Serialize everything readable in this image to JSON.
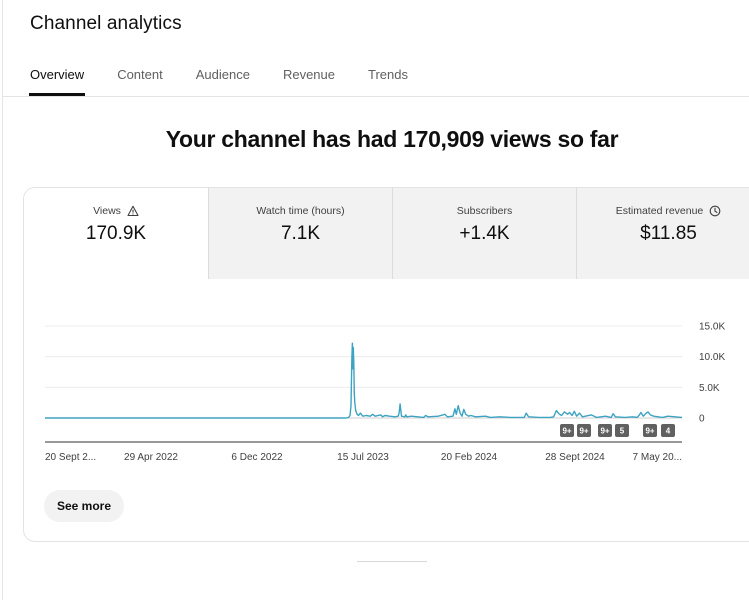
{
  "header": {
    "title": "Channel analytics"
  },
  "tabs": [
    {
      "label": "Overview",
      "active": true
    },
    {
      "label": "Content",
      "active": false
    },
    {
      "label": "Audience",
      "active": false
    },
    {
      "label": "Revenue",
      "active": false
    },
    {
      "label": "Trends",
      "active": false
    }
  ],
  "headline": "Your channel has had 170,909 views so far",
  "metrics": [
    {
      "label": "Views",
      "value": "170.9K",
      "icon": "warning-icon",
      "active": true
    },
    {
      "label": "Watch time (hours)",
      "value": "7.1K",
      "active": false
    },
    {
      "label": "Subscribers",
      "value": "+1.4K",
      "active": false
    },
    {
      "label": "Estimated revenue",
      "value": "$11.85",
      "icon": "clock-icon",
      "active": false
    }
  ],
  "colors": {
    "line": "#3da3c2",
    "accent": "#0f0f0f",
    "marker_bg": "#606060"
  },
  "chart_data": {
    "type": "line",
    "metric": "Views",
    "y_ticks": [
      "15.0K",
      "10.0K",
      "5.0K",
      "0"
    ],
    "ylim": [
      0,
      15000
    ],
    "x_ticks": [
      "20 Sept 2...",
      "29 Apr 2022",
      "6 Dec 2022",
      "15 Jul 2023",
      "20 Feb 2024",
      "28 Sept 2024",
      "7 May 20..."
    ],
    "xlim": [
      "2021-09-20",
      "2025-05-31"
    ],
    "grid": true,
    "series": [
      {
        "x": [
          "2021-09-20",
          "2023-06-20",
          "2023-06-25",
          "2023-06-28",
          "2023-06-30",
          "2023-07-01",
          "2023-07-02",
          "2023-07-03",
          "2023-07-04",
          "2023-07-05",
          "2023-07-06",
          "2023-07-07",
          "2023-07-08",
          "2023-07-10",
          "2023-07-13",
          "2023-07-16",
          "2023-07-20",
          "2023-07-25",
          "2023-08-01",
          "2023-08-10",
          "2023-08-15",
          "2023-08-20",
          "2023-09-01",
          "2023-09-05",
          "2023-09-10",
          "2023-09-20",
          "2023-10-01",
          "2023-10-08",
          "2023-10-10",
          "2023-10-12",
          "2023-10-15",
          "2023-10-22",
          "2023-10-24",
          "2023-10-26",
          "2023-11-05",
          "2023-12-01",
          "2023-12-05",
          "2023-12-10",
          "2024-01-01",
          "2024-01-15",
          "2024-01-20",
          "2024-02-01",
          "2024-02-05",
          "2024-02-08",
          "2024-02-12",
          "2024-02-16",
          "2024-02-20",
          "2024-02-24",
          "2024-02-28",
          "2024-03-05",
          "2024-03-10",
          "2024-03-20",
          "2024-04-10",
          "2024-04-20",
          "2024-05-10",
          "2024-06-01",
          "2024-07-01",
          "2024-07-05",
          "2024-07-10",
          "2024-08-01",
          "2024-08-25",
          "2024-09-01",
          "2024-09-07",
          "2024-09-12",
          "2024-09-18",
          "2024-09-24",
          "2024-10-01",
          "2024-10-05",
          "2024-10-10",
          "2024-10-15",
          "2024-10-20",
          "2024-10-26",
          "2024-11-01",
          "2024-11-20",
          "2024-12-01",
          "2024-12-20",
          "2025-01-01",
          "2025-01-05",
          "2025-01-10",
          "2025-01-30",
          "2025-02-15",
          "2025-02-25",
          "2025-03-01",
          "2025-03-05",
          "2025-03-10",
          "2025-03-15",
          "2025-03-20",
          "2025-03-25",
          "2025-04-01",
          "2025-04-10",
          "2025-04-20",
          "2025-05-01",
          "2025-05-31"
        ],
        "values": [
          0,
          0,
          100,
          400,
          2000,
          6500,
          10000,
          12200,
          8000,
          11500,
          9000,
          4000,
          2500,
          1200,
          600,
          400,
          800,
          300,
          400,
          300,
          600,
          300,
          500,
          200,
          400,
          300,
          200,
          300,
          900,
          2300,
          300,
          200,
          500,
          200,
          300,
          100,
          400,
          200,
          300,
          600,
          200,
          300,
          1500,
          600,
          2000,
          800,
          300,
          1400,
          600,
          300,
          400,
          200,
          300,
          100,
          200,
          100,
          100,
          800,
          200,
          100,
          100,
          200,
          1200,
          700,
          400,
          1000,
          600,
          900,
          400,
          1100,
          300,
          800,
          200,
          500,
          100,
          300,
          100,
          700,
          200,
          100,
          200,
          100,
          400,
          900,
          300,
          700,
          1000,
          500,
          300,
          200,
          100,
          300,
          100
        ]
      }
    ],
    "markers": [
      "9+",
      "9+",
      "9+",
      "5",
      "9+",
      "4"
    ]
  },
  "buttons": {
    "see_more": "See more"
  }
}
